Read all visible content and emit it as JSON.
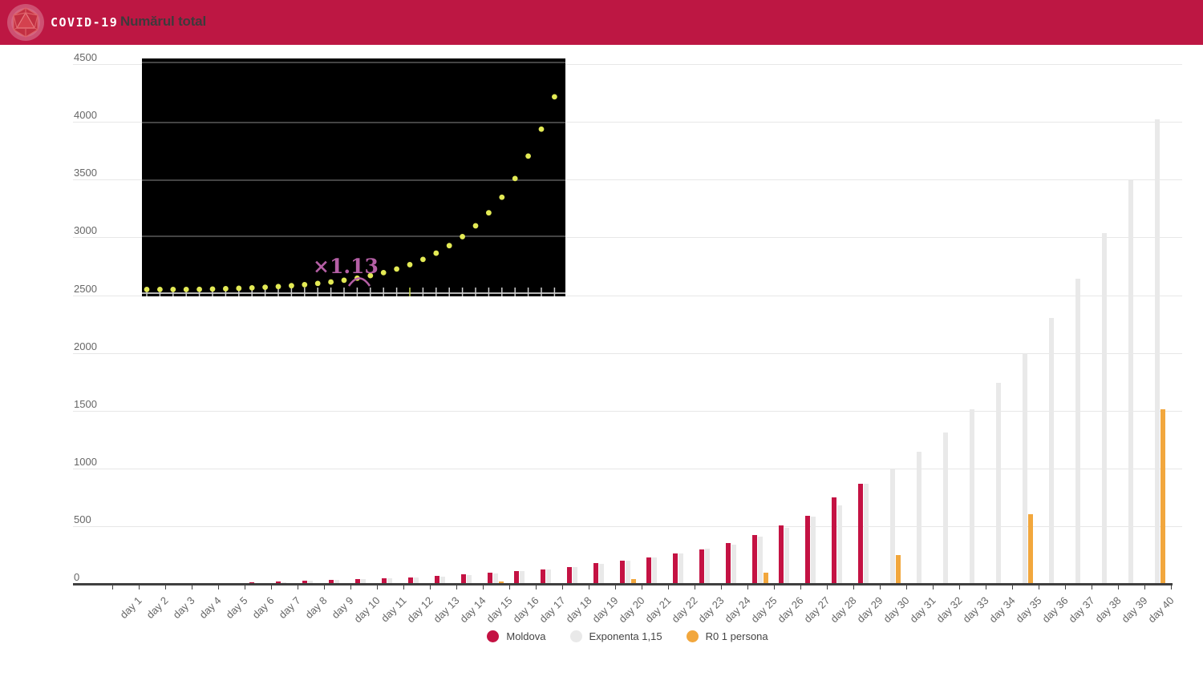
{
  "header": {
    "app_title": "COVID-19",
    "nav_title": "Numărul total",
    "bg_color": "#BD1743",
    "logo_icon": "virus-icon"
  },
  "inset": {
    "label": "×1.13",
    "description": "black inset image of exponential growth with yellow dots",
    "dot_color": "#e3ea55",
    "label_color": "#b55fa5"
  },
  "chart_data": {
    "type": "bar",
    "title": "",
    "xlabel": "",
    "ylabel": "",
    "ylim": [
      0,
      4500
    ],
    "yticks": [
      0,
      500,
      1000,
      1500,
      2000,
      2500,
      3000,
      3500,
      4000,
      4500
    ],
    "grid": true,
    "legend_position": "bottom",
    "categories": [
      "day 1",
      "day 2",
      "day 3",
      "day 4",
      "day 5",
      "day 6",
      "day 7",
      "day 8",
      "day 9",
      "day 10",
      "day 11",
      "day 12",
      "day 13",
      "day 14",
      "day 15",
      "day 16",
      "day 17",
      "day 18",
      "day 19",
      "day 20",
      "day 21",
      "day 22",
      "day 23",
      "day 24",
      "day 25",
      "day 26",
      "day 27",
      "day 28",
      "day 29",
      "day 30",
      "day 31",
      "day 32",
      "day 33",
      "day 34",
      "day 35",
      "day 36",
      "day 37",
      "day 38",
      "day 39",
      "day 40"
    ],
    "series": [
      {
        "name": "Moldova",
        "color": "#c41243",
        "values": [
          1,
          3,
          3,
          4,
          6,
          12,
          23,
          30,
          36,
          41,
          49,
          56,
          66,
          80,
          94,
          109,
          125,
          149,
          177,
          199,
          231,
          263,
          298,
          353,
          423,
          505,
          591,
          752,
          864,
          null,
          null,
          null,
          null,
          null,
          null,
          null,
          null,
          null,
          null,
          null
        ]
      },
      {
        "name": "Exponenta 1,15",
        "color": "#e9e9e9",
        "values": [
          null,
          1,
          3,
          3,
          5,
          7,
          14,
          26,
          35,
          41,
          47,
          56,
          64,
          76,
          92,
          108,
          125,
          144,
          171,
          204,
          229,
          266,
          302,
          343,
          406,
          486,
          581,
          680,
          865,
          994,
          1143,
          1314,
          1511,
          1738,
          1999,
          2299,
          2643,
          3040,
          3496,
          4020
        ]
      },
      {
        "name": "R0 1 persona",
        "color": "#f2a73d",
        "values": [
          5,
          null,
          null,
          null,
          9,
          null,
          null,
          null,
          null,
          10,
          null,
          null,
          null,
          null,
          23,
          null,
          null,
          null,
          null,
          44,
          null,
          null,
          null,
          null,
          100,
          null,
          null,
          null,
          null,
          250,
          null,
          null,
          null,
          null,
          600,
          null,
          null,
          null,
          null,
          1510
        ]
      }
    ]
  }
}
